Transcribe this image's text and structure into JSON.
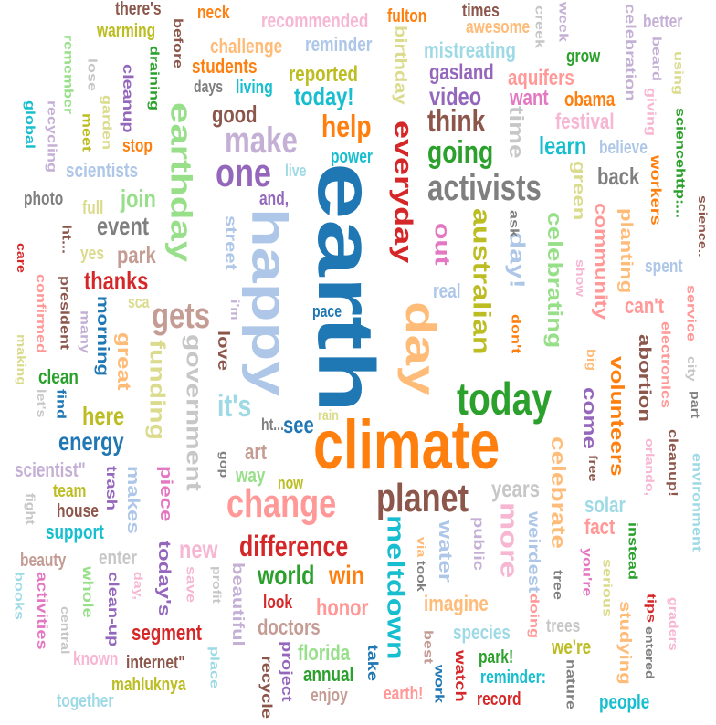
{
  "palette": {
    "blue": "#1f77b4",
    "lightblue": "#aec7e8",
    "orange": "#ff7f0e",
    "peach": "#ffbb78",
    "green": "#2ca02c",
    "lightgreen": "#98df8a",
    "red": "#d62728",
    "pink": "#ff9896",
    "purple": "#9467bd",
    "lavender": "#c5b0d5",
    "brown": "#8c564b",
    "tan": "#c49c94",
    "magenta": "#e377c2",
    "rose": "#f7b6d2",
    "gray": "#7f7f7f",
    "silver": "#c7c7c7",
    "olive": "#bcbd22",
    "khaki": "#dbdb8d",
    "teal": "#17becf",
    "aqua": "#9edae5"
  },
  "words": [
    {
      "text": "earth",
      "color": "blue"
    },
    {
      "text": "climate",
      "color": "orange"
    },
    {
      "text": "happy",
      "color": "lightblue"
    },
    {
      "text": "day",
      "color": "peach"
    },
    {
      "text": "today",
      "color": "green"
    },
    {
      "text": "earthday",
      "color": "lightgreen"
    },
    {
      "text": "change",
      "color": "pink"
    },
    {
      "text": "planet",
      "color": "brown"
    },
    {
      "text": "everyday",
      "color": "red"
    },
    {
      "text": "activists",
      "color": "gray"
    },
    {
      "text": "make",
      "color": "lavender"
    },
    {
      "text": "one",
      "color": "purple"
    },
    {
      "text": "australian",
      "color": "olive"
    },
    {
      "text": "meltdown",
      "color": "teal"
    },
    {
      "text": "more",
      "color": "rose"
    },
    {
      "text": "gets",
      "color": "tan"
    },
    {
      "text": "government",
      "color": "silver"
    },
    {
      "text": "funding",
      "color": "khaki"
    },
    {
      "text": "it's",
      "color": "aqua"
    },
    {
      "text": "going",
      "color": "green"
    },
    {
      "text": "help",
      "color": "orange"
    },
    {
      "text": "think",
      "color": "brown"
    },
    {
      "text": "difference",
      "color": "red"
    },
    {
      "text": "world",
      "color": "green"
    },
    {
      "text": "win",
      "color": "orange"
    },
    {
      "text": "new",
      "color": "rose"
    },
    {
      "text": "celebrate",
      "color": "peach"
    },
    {
      "text": "celebrating",
      "color": "lightgreen"
    },
    {
      "text": "day!",
      "color": "lightblue"
    },
    {
      "text": "out",
      "color": "magenta"
    },
    {
      "text": "time",
      "color": "silver"
    },
    {
      "text": "learn",
      "color": "teal"
    },
    {
      "text": "green",
      "color": "khaki"
    },
    {
      "text": "community",
      "color": "pink"
    },
    {
      "text": "planting",
      "color": "peach"
    },
    {
      "text": "volunteers",
      "color": "orange"
    },
    {
      "text": "come",
      "color": "purple"
    },
    {
      "text": "abortion",
      "color": "brown"
    },
    {
      "text": "energy",
      "color": "blue"
    },
    {
      "text": "here",
      "color": "olive"
    },
    {
      "text": "great",
      "color": "peach"
    },
    {
      "text": "event",
      "color": "gray"
    },
    {
      "text": "join",
      "color": "lightgreen"
    },
    {
      "text": "thanks",
      "color": "red"
    },
    {
      "text": "park",
      "color": "tan"
    },
    {
      "text": "good",
      "color": "brown"
    },
    {
      "text": "today!",
      "color": "teal"
    },
    {
      "text": "video",
      "color": "purple"
    },
    {
      "text": "want",
      "color": "magenta"
    },
    {
      "text": "obama",
      "color": "orange"
    },
    {
      "text": "festival",
      "color": "rose"
    },
    {
      "text": "believe",
      "color": "lightblue"
    },
    {
      "text": "back",
      "color": "gray"
    },
    {
      "text": "workers",
      "color": "orange"
    },
    {
      "text": "reported",
      "color": "olive"
    },
    {
      "text": "gasland",
      "color": "purple"
    },
    {
      "text": "aquifers",
      "color": "pink"
    },
    {
      "text": "mistreating",
      "color": "aqua"
    },
    {
      "text": "grow",
      "color": "green"
    },
    {
      "text": "celebration",
      "color": "lavender"
    },
    {
      "text": "beard",
      "color": "lavender"
    },
    {
      "text": "giving",
      "color": "rose"
    },
    {
      "text": "using",
      "color": "khaki"
    },
    {
      "text": "better",
      "color": "lavender"
    },
    {
      "text": "sciencehttp:...",
      "color": "green"
    },
    {
      "text": "recommended",
      "color": "rose"
    },
    {
      "text": "fulton",
      "color": "orange"
    },
    {
      "text": "times",
      "color": "brown"
    },
    {
      "text": "awesome",
      "color": "peach"
    },
    {
      "text": "creek",
      "color": "silver"
    },
    {
      "text": "week",
      "color": "lavender"
    },
    {
      "text": "neck",
      "color": "orange"
    },
    {
      "text": "there's",
      "color": "brown"
    },
    {
      "text": "warming",
      "color": "olive"
    },
    {
      "text": "challenge",
      "color": "peach"
    },
    {
      "text": "reminder",
      "color": "lightblue"
    },
    {
      "text": "birthday",
      "color": "khaki"
    },
    {
      "text": "students",
      "color": "orange"
    },
    {
      "text": "living",
      "color": "teal"
    },
    {
      "text": "days",
      "color": "gray"
    },
    {
      "text": "before",
      "color": "brown"
    },
    {
      "text": "draining",
      "color": "green"
    },
    {
      "text": "remember",
      "color": "lightgreen"
    },
    {
      "text": "lose",
      "color": "silver"
    },
    {
      "text": "cleanup",
      "color": "purple"
    },
    {
      "text": "recycling",
      "color": "lavender"
    },
    {
      "text": "global",
      "color": "teal"
    },
    {
      "text": "garden",
      "color": "khaki"
    },
    {
      "text": "meet",
      "color": "olive"
    },
    {
      "text": "stop",
      "color": "orange"
    },
    {
      "text": "scientists",
      "color": "lightblue"
    },
    {
      "text": "power",
      "color": "teal"
    },
    {
      "text": "live",
      "color": "aqua"
    },
    {
      "text": "and,",
      "color": "purple"
    },
    {
      "text": "photo",
      "color": "gray"
    },
    {
      "text": "full",
      "color": "khaki"
    },
    {
      "text": "street",
      "color": "lightblue"
    },
    {
      "text": "ask",
      "color": "gray"
    },
    {
      "text": "show",
      "color": "rose"
    },
    {
      "text": "spent",
      "color": "lightblue"
    },
    {
      "text": "science..",
      "color": "brown"
    },
    {
      "text": "yes",
      "color": "khaki"
    },
    {
      "text": "ht...",
      "color": "brown"
    },
    {
      "text": "care",
      "color": "red"
    },
    {
      "text": "confirmed",
      "color": "pink"
    },
    {
      "text": "president",
      "color": "brown"
    },
    {
      "text": "many",
      "color": "lavender"
    },
    {
      "text": "morning",
      "color": "blue"
    },
    {
      "text": "sca",
      "color": "khaki"
    },
    {
      "text": "making",
      "color": "khaki"
    },
    {
      "text": "clean",
      "color": "green"
    },
    {
      "text": "find",
      "color": "blue"
    },
    {
      "text": "let's",
      "color": "silver"
    },
    {
      "text": "i'm",
      "color": "lavender"
    },
    {
      "text": "love",
      "color": "brown"
    },
    {
      "text": "pace",
      "color": "blue"
    },
    {
      "text": "real",
      "color": "lightblue"
    },
    {
      "text": "don't",
      "color": "orange"
    },
    {
      "text": "can't",
      "color": "pink"
    },
    {
      "text": "service",
      "color": "pink"
    },
    {
      "text": "city",
      "color": "silver"
    },
    {
      "text": "electronics",
      "color": "pink"
    },
    {
      "text": "big",
      "color": "peach"
    },
    {
      "text": "part",
      "color": "gray"
    },
    {
      "text": "see",
      "color": "blue"
    },
    {
      "text": "ht...",
      "color": "gray"
    },
    {
      "text": "art",
      "color": "tan"
    },
    {
      "text": "rain",
      "color": "khaki"
    },
    {
      "text": "cleanup!",
      "color": "brown"
    },
    {
      "text": "orlando,",
      "color": "rose"
    },
    {
      "text": "free",
      "color": "brown"
    },
    {
      "text": "environment",
      "color": "aqua"
    },
    {
      "text": "scientist\"",
      "color": "lavender"
    },
    {
      "text": "trash",
      "color": "purple"
    },
    {
      "text": "makes",
      "color": "lightblue"
    },
    {
      "text": "piece",
      "color": "magenta"
    },
    {
      "text": "gop",
      "color": "gray"
    },
    {
      "text": "way",
      "color": "lightgreen"
    },
    {
      "text": "now",
      "color": "olive"
    },
    {
      "text": "years",
      "color": "silver"
    },
    {
      "text": "team",
      "color": "olive"
    },
    {
      "text": "fight",
      "color": "silver"
    },
    {
      "text": "house",
      "color": "brown"
    },
    {
      "text": "support",
      "color": "teal"
    },
    {
      "text": "solar",
      "color": "aqua"
    },
    {
      "text": "fact",
      "color": "pink"
    },
    {
      "text": "instead",
      "color": "green"
    },
    {
      "text": "water",
      "color": "lightblue"
    },
    {
      "text": "public",
      "color": "lavender"
    },
    {
      "text": "weirdest",
      "color": "lightblue"
    },
    {
      "text": "via",
      "color": "peach"
    },
    {
      "text": "took",
      "color": "gray"
    },
    {
      "text": "beauty",
      "color": "tan"
    },
    {
      "text": "enter",
      "color": "silver"
    },
    {
      "text": "whole",
      "color": "lightgreen"
    },
    {
      "text": "books",
      "color": "aqua"
    },
    {
      "text": "activities",
      "color": "magenta"
    },
    {
      "text": "central",
      "color": "silver"
    },
    {
      "text": "clean-up",
      "color": "purple"
    },
    {
      "text": "day,",
      "color": "rose"
    },
    {
      "text": "today's",
      "color": "purple"
    },
    {
      "text": "save",
      "color": "rose"
    },
    {
      "text": "profit",
      "color": "silver"
    },
    {
      "text": "beautiful",
      "color": "lavender"
    },
    {
      "text": "look",
      "color": "red"
    },
    {
      "text": "honor",
      "color": "pink"
    },
    {
      "text": "doctors",
      "color": "tan"
    },
    {
      "text": "imagine",
      "color": "peach"
    },
    {
      "text": "species",
      "color": "aqua"
    },
    {
      "text": "trees",
      "color": "silver"
    },
    {
      "text": "doing",
      "color": "pink"
    },
    {
      "text": "tree",
      "color": "gray"
    },
    {
      "text": "you're",
      "color": "magenta"
    },
    {
      "text": "serious",
      "color": "khaki"
    },
    {
      "text": "studying",
      "color": "peach"
    },
    {
      "text": "tips",
      "color": "red"
    },
    {
      "text": "entered",
      "color": "gray"
    },
    {
      "text": "graders",
      "color": "rose"
    },
    {
      "text": "segment",
      "color": "red"
    },
    {
      "text": "known",
      "color": "rose"
    },
    {
      "text": "internet\"",
      "color": "brown"
    },
    {
      "text": "mahluknya",
      "color": "olive"
    },
    {
      "text": "together",
      "color": "aqua"
    },
    {
      "text": "place",
      "color": "aqua"
    },
    {
      "text": "recycle",
      "color": "brown"
    },
    {
      "text": "project",
      "color": "purple"
    },
    {
      "text": "enjoy",
      "color": "tan"
    },
    {
      "text": "annual",
      "color": "green"
    },
    {
      "text": "florida",
      "color": "lightgreen"
    },
    {
      "text": "take",
      "color": "blue"
    },
    {
      "text": "work",
      "color": "blue"
    },
    {
      "text": "earth!",
      "color": "pink"
    },
    {
      "text": "best",
      "color": "tan"
    },
    {
      "text": "watch",
      "color": "red"
    },
    {
      "text": "park!",
      "color": "green"
    },
    {
      "text": "reminder:",
      "color": "teal"
    },
    {
      "text": "we're",
      "color": "olive"
    },
    {
      "text": "record",
      "color": "red"
    },
    {
      "text": "nature",
      "color": "gray"
    },
    {
      "text": "people",
      "color": "teal"
    }
  ]
}
